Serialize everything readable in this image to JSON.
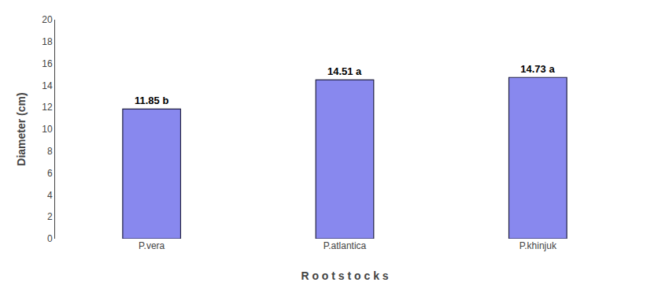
{
  "chart_data": {
    "type": "bar",
    "categories": [
      "P.vera",
      "P.atlantica",
      "P.khinjuk"
    ],
    "values": [
      11.85,
      14.51,
      14.73
    ],
    "value_labels": [
      "11.85 b",
      "14.51 a",
      "14.73 a"
    ],
    "data_labels": true,
    "color": "#8888EE",
    "xlabel": "R o o t s t o c k s",
    "ylabel": "Diameter (cm)",
    "ylim": [
      0,
      20
    ],
    "yticks": [
      0,
      2,
      4,
      6,
      8,
      10,
      12,
      14,
      16,
      18,
      20
    ],
    "grid": false
  }
}
